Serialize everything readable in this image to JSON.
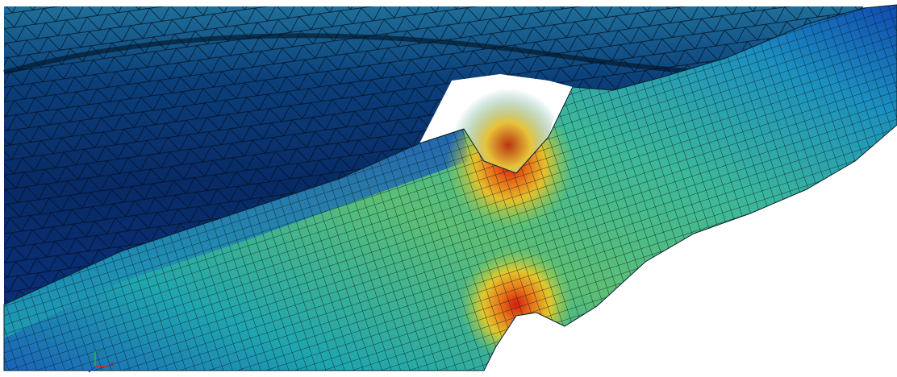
{
  "axes_triad": {
    "y_label": "y",
    "x_label": "x"
  }
}
